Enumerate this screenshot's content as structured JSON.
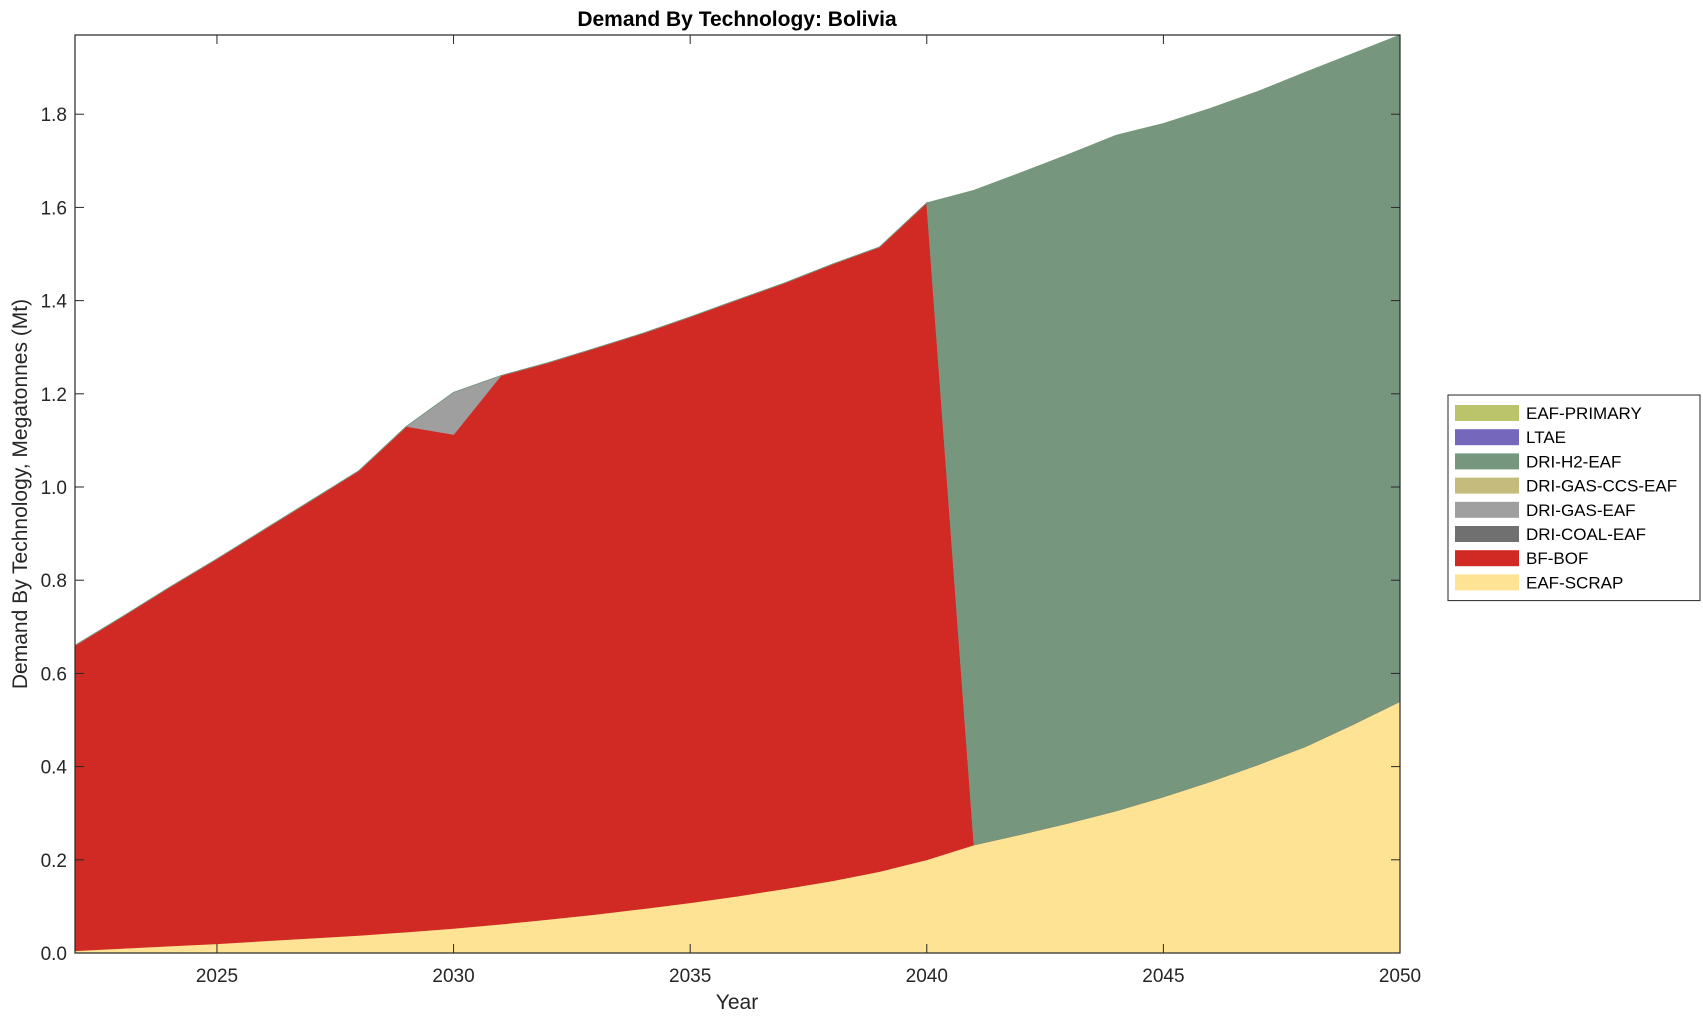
{
  "chart_data": {
    "type": "area",
    "stacked": true,
    "title": "Demand By Technology: Bolivia",
    "xlabel": "Year",
    "ylabel": "Demand By Technology, Megatonnes (Mt)",
    "xlim": [
      2022,
      2050
    ],
    "ylim": [
      0,
      1.97
    ],
    "xticks": [
      2025,
      2030,
      2035,
      2040,
      2045,
      2050
    ],
    "yticks": [
      0.0,
      0.2,
      0.4,
      0.6,
      0.8,
      1.0,
      1.2,
      1.4,
      1.6,
      1.8
    ],
    "ytick_labels": [
      "0.0",
      "0.2",
      "0.4",
      "0.6",
      "0.8",
      "1.0",
      "1.2",
      "1.4",
      "1.6",
      "1.8"
    ],
    "grid": false,
    "legend_position": "right",
    "x": [
      2022,
      2023,
      2024,
      2025,
      2026,
      2027,
      2028,
      2029,
      2030,
      2031,
      2032,
      2033,
      2034,
      2035,
      2036,
      2037,
      2038,
      2039,
      2040,
      2041,
      2042,
      2043,
      2044,
      2045,
      2046,
      2047,
      2048,
      2049,
      2050
    ],
    "series": [
      {
        "name": "EAF-SCRAP",
        "color": "#fde393",
        "values": [
          0.005,
          0.01,
          0.015,
          0.02,
          0.026,
          0.032,
          0.038,
          0.045,
          0.053,
          0.062,
          0.072,
          0.083,
          0.095,
          0.108,
          0.122,
          0.138,
          0.155,
          0.175,
          0.2,
          0.232,
          0.255,
          0.279,
          0.305,
          0.335,
          0.368,
          0.404,
          0.443,
          0.49,
          0.54
        ]
      },
      {
        "name": "BF-BOF",
        "color": "#d12a25",
        "values": [
          0.655,
          0.712,
          0.77,
          0.826,
          0.883,
          0.94,
          0.997,
          1.085,
          1.06,
          1.177,
          1.195,
          1.215,
          1.235,
          1.257,
          1.28,
          1.3,
          1.323,
          1.34,
          1.41,
          0.0,
          0.0,
          0.0,
          0.0,
          0.0,
          0.0,
          0.0,
          0.0,
          0.0,
          0.0
        ]
      },
      {
        "name": "DRI-COAL-EAF",
        "color": "#707070",
        "values": [
          0,
          0,
          0,
          0,
          0,
          0,
          0,
          0,
          0,
          0,
          0,
          0,
          0,
          0,
          0,
          0,
          0,
          0,
          0,
          0,
          0,
          0,
          0,
          0,
          0,
          0,
          0,
          0,
          0
        ]
      },
      {
        "name": "DRI-GAS-EAF",
        "color": "#9f9f9f",
        "values": [
          0,
          0,
          0,
          0,
          0,
          0,
          0,
          0,
          0.09,
          0,
          0,
          0,
          0,
          0,
          0,
          0,
          0,
          0,
          0,
          0,
          0,
          0,
          0,
          0,
          0,
          0,
          0,
          0,
          0
        ]
      },
      {
        "name": "DRI-GAS-CCS-EAF",
        "color": "#c4bb7d",
        "values": [
          0,
          0,
          0,
          0,
          0,
          0,
          0,
          0,
          0,
          0,
          0,
          0,
          0,
          0,
          0,
          0,
          0,
          0,
          0,
          0,
          0,
          0,
          0,
          0,
          0,
          0,
          0,
          0,
          0
        ]
      },
      {
        "name": "DRI-H2-EAF",
        "color": "#76977d",
        "values": [
          0,
          0,
          0,
          0,
          0,
          0,
          0,
          0,
          0,
          0,
          0,
          0,
          0,
          0,
          0,
          0,
          0,
          0,
          0,
          1.405,
          1.42,
          1.435,
          1.45,
          1.445,
          1.445,
          1.445,
          1.447,
          1.44,
          1.43
        ]
      },
      {
        "name": "LTAE",
        "color": "#7467bc",
        "values": [
          0,
          0,
          0,
          0,
          0,
          0,
          0,
          0,
          0,
          0,
          0,
          0,
          0,
          0,
          0,
          0,
          0,
          0,
          0,
          0,
          0,
          0,
          0,
          0,
          0,
          0,
          0,
          0,
          0
        ]
      },
      {
        "name": "EAF-PRIMARY",
        "color": "#bcc46b",
        "values": [
          0,
          0,
          0,
          0,
          0,
          0,
          0,
          0,
          0,
          0,
          0,
          0,
          0,
          0,
          0,
          0,
          0,
          0,
          0,
          0,
          0,
          0,
          0,
          0,
          0,
          0,
          0,
          0,
          0
        ]
      }
    ],
    "legend_order": [
      "EAF-PRIMARY",
      "LTAE",
      "DRI-H2-EAF",
      "DRI-GAS-CCS-EAF",
      "DRI-GAS-EAF",
      "DRI-COAL-EAF",
      "BF-BOF",
      "EAF-SCRAP"
    ]
  }
}
